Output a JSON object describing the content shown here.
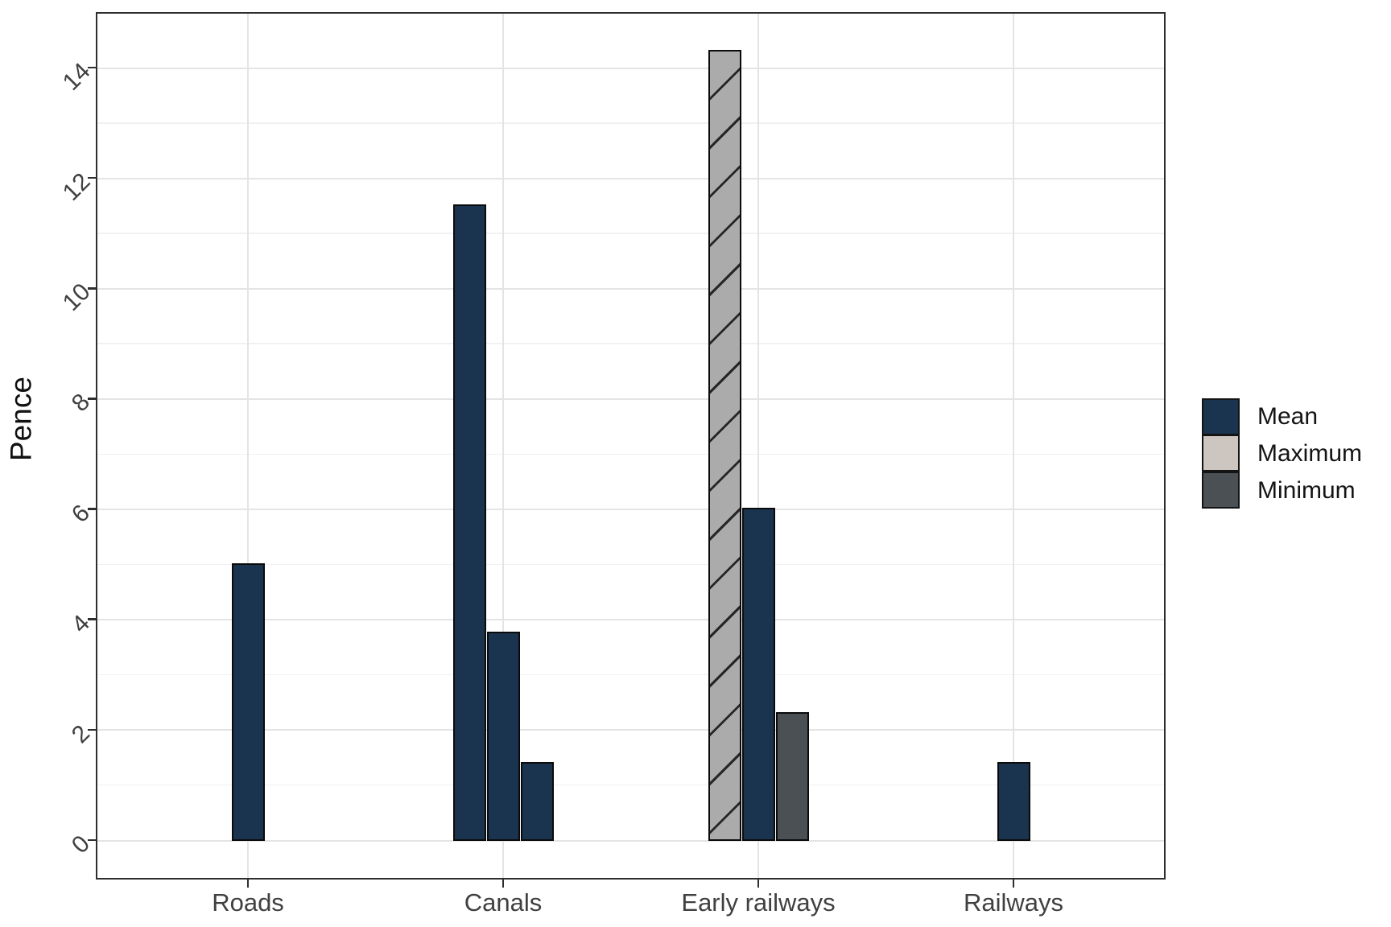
{
  "figure": {
    "y_axis": {
      "title": "Pence",
      "tick_labels": [
        "0",
        "2",
        "4",
        "6",
        "8",
        "10",
        "12",
        "14"
      ],
      "tick_values": [
        0,
        2,
        4,
        6,
        8,
        10,
        12,
        14
      ],
      "minor_values": [
        1,
        3,
        5,
        7,
        9,
        11,
        13
      ]
    },
    "x_axis": {
      "categories": [
        "Roads",
        "Canals",
        "Early railways",
        "Railways"
      ]
    },
    "legend": {
      "items": [
        {
          "label": "Mean",
          "swatch": "mean"
        },
        {
          "label": "Maximum",
          "swatch": "maximum_key"
        },
        {
          "label": "Minimum",
          "swatch": "minimum"
        }
      ]
    },
    "colors": {
      "mean": "#1a334e",
      "maximum_key": "#cdc6c0",
      "maximum_bar_fill": "#ababab",
      "maximum_hatch_line": "#262626",
      "minimum": "#4a5054",
      "bar_stroke": "#0b0b0b",
      "gridline_major": "#e4e4e4",
      "gridline_minor": "#f1f1f1",
      "panel_border": "#2e2e2e",
      "tick_label": "#404040"
    }
  },
  "chart_data": {
    "type": "bar",
    "title": "",
    "xlabel": "",
    "ylabel": "Pence",
    "ylim": [
      0,
      14.5
    ],
    "grid": "major and minor horizontal, vertical at category centers",
    "legend_position": "right",
    "categories": [
      "Roads",
      "Canals",
      "Early railways",
      "Railways"
    ],
    "groups": [
      {
        "category": "Roads",
        "bars": [
          {
            "series": "Mean",
            "value": 5.0,
            "fill": "mean",
            "hatched": false
          }
        ]
      },
      {
        "category": "Canals",
        "bars": [
          {
            "series": "Mean",
            "value": 11.5,
            "fill": "mean",
            "hatched": false
          },
          {
            "series": "Mean",
            "value": 3.75,
            "fill": "mean",
            "hatched": false
          },
          {
            "series": "Mean",
            "value": 1.4,
            "fill": "mean",
            "hatched": false
          }
        ]
      },
      {
        "category": "Early railways",
        "bars": [
          {
            "series": "Maximum",
            "value": 14.3,
            "fill": "maximum",
            "hatched": true
          },
          {
            "series": "Mean",
            "value": 6.0,
            "fill": "mean",
            "hatched": false
          },
          {
            "series": "Minimum",
            "value": 2.3,
            "fill": "minimum",
            "hatched": false
          }
        ]
      },
      {
        "category": "Railways",
        "bars": [
          {
            "series": "Mean",
            "value": 1.4,
            "fill": "mean",
            "hatched": false
          }
        ]
      }
    ]
  }
}
